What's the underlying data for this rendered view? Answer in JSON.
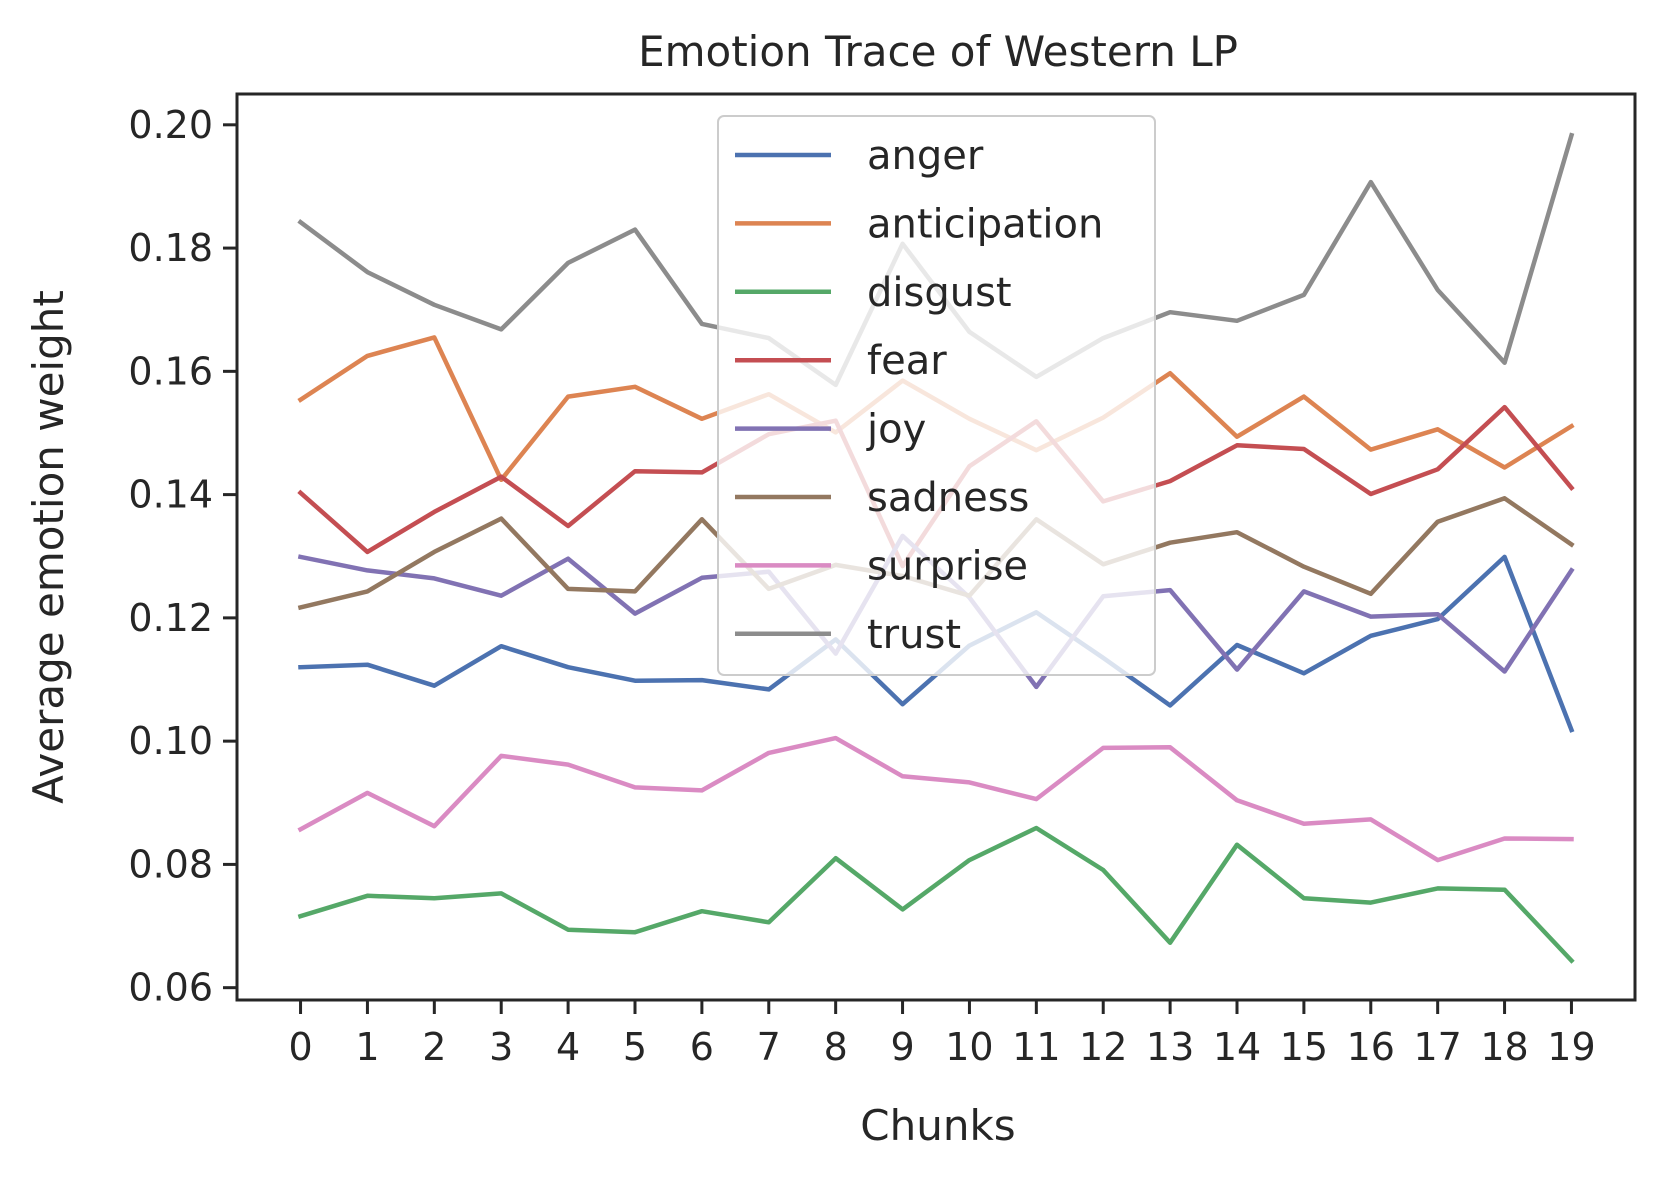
{
  "chart_data": {
    "type": "line",
    "title": "Emotion Trace of Western LP",
    "xlabel": "Chunks",
    "ylabel": "Average emotion weight",
    "x": [
      0,
      1,
      2,
      3,
      4,
      5,
      6,
      7,
      8,
      9,
      10,
      11,
      12,
      13,
      14,
      15,
      16,
      17,
      18,
      19
    ],
    "xticks": [
      "0",
      "1",
      "2",
      "3",
      "4",
      "5",
      "6",
      "7",
      "8",
      "9",
      "10",
      "11",
      "12",
      "13",
      "14",
      "15",
      "16",
      "17",
      "18",
      "19"
    ],
    "yticks": [
      "0.06",
      "0.08",
      "0.10",
      "0.12",
      "0.14",
      "0.16",
      "0.18",
      "0.20"
    ],
    "ytick_values": [
      0.06,
      0.08,
      0.1,
      0.12,
      0.14,
      0.16,
      0.18,
      0.2
    ],
    "xlim": [
      -0.95,
      19.95
    ],
    "ylim": [
      0.058,
      0.205
    ],
    "grid": false,
    "legend": "top-center",
    "series": [
      {
        "name": "anger",
        "color": "#4c72b0",
        "values": [
          0.112,
          0.1124,
          0.109,
          0.1154,
          0.112,
          0.1098,
          0.1099,
          0.1084,
          0.1165,
          0.106,
          0.1155,
          0.1209,
          0.1135,
          0.1058,
          0.1156,
          0.111,
          0.1171,
          0.1198,
          0.1299,
          0.1018
        ]
      },
      {
        "name": "anticipation",
        "color": "#dd8452",
        "values": [
          0.1554,
          0.1625,
          0.1655,
          0.1424,
          0.1559,
          0.1575,
          0.1523,
          0.1563,
          0.1501,
          0.1585,
          0.1523,
          0.1472,
          0.1525,
          0.1597,
          0.1494,
          0.1559,
          0.1473,
          0.1506,
          0.1444,
          0.1511
        ]
      },
      {
        "name": "disgust",
        "color": "#55a868",
        "values": [
          0.0716,
          0.0749,
          0.0745,
          0.0753,
          0.0694,
          0.069,
          0.0724,
          0.0706,
          0.081,
          0.0727,
          0.0807,
          0.0859,
          0.0791,
          0.0673,
          0.0832,
          0.0745,
          0.0738,
          0.0761,
          0.0759,
          0.0644
        ]
      },
      {
        "name": "fear",
        "color": "#c44e52",
        "values": [
          0.1403,
          0.1307,
          0.1372,
          0.1429,
          0.1349,
          0.1438,
          0.1436,
          0.1498,
          0.152,
          0.1284,
          0.1446,
          0.1519,
          0.1389,
          0.1422,
          0.148,
          0.1474,
          0.1401,
          0.1441,
          0.1542,
          0.1411
        ]
      },
      {
        "name": "joy",
        "color": "#8172b3",
        "values": [
          0.1299,
          0.1277,
          0.1264,
          0.1236,
          0.1296,
          0.1207,
          0.1265,
          0.1275,
          0.1142,
          0.1333,
          0.1233,
          0.1088,
          0.1235,
          0.1245,
          0.1116,
          0.1243,
          0.1202,
          0.1206,
          0.1113,
          0.1277
        ]
      },
      {
        "name": "sadness",
        "color": "#937860",
        "values": [
          0.1217,
          0.1243,
          0.1307,
          0.1361,
          0.1247,
          0.1243,
          0.136,
          0.1247,
          0.1286,
          0.1268,
          0.1236,
          0.136,
          0.1287,
          0.1322,
          0.1339,
          0.1283,
          0.1239,
          0.1356,
          0.1394,
          0.1319
        ]
      },
      {
        "name": "surprise",
        "color": "#da8bc3",
        "values": [
          0.0857,
          0.0916,
          0.0862,
          0.0976,
          0.0962,
          0.0925,
          0.092,
          0.0981,
          0.1005,
          0.0943,
          0.0933,
          0.0906,
          0.0989,
          0.099,
          0.0904,
          0.0866,
          0.0873,
          0.0807,
          0.0842,
          0.0841
        ]
      },
      {
        "name": "trust",
        "color": "#8c8c8c",
        "values": [
          0.1842,
          0.1761,
          0.1708,
          0.1668,
          0.1776,
          0.183,
          0.1677,
          0.1654,
          0.1578,
          0.1807,
          0.1664,
          0.1591,
          0.1654,
          0.1696,
          0.1682,
          0.1724,
          0.1907,
          0.1732,
          0.1614,
          0.1983
        ]
      }
    ]
  }
}
